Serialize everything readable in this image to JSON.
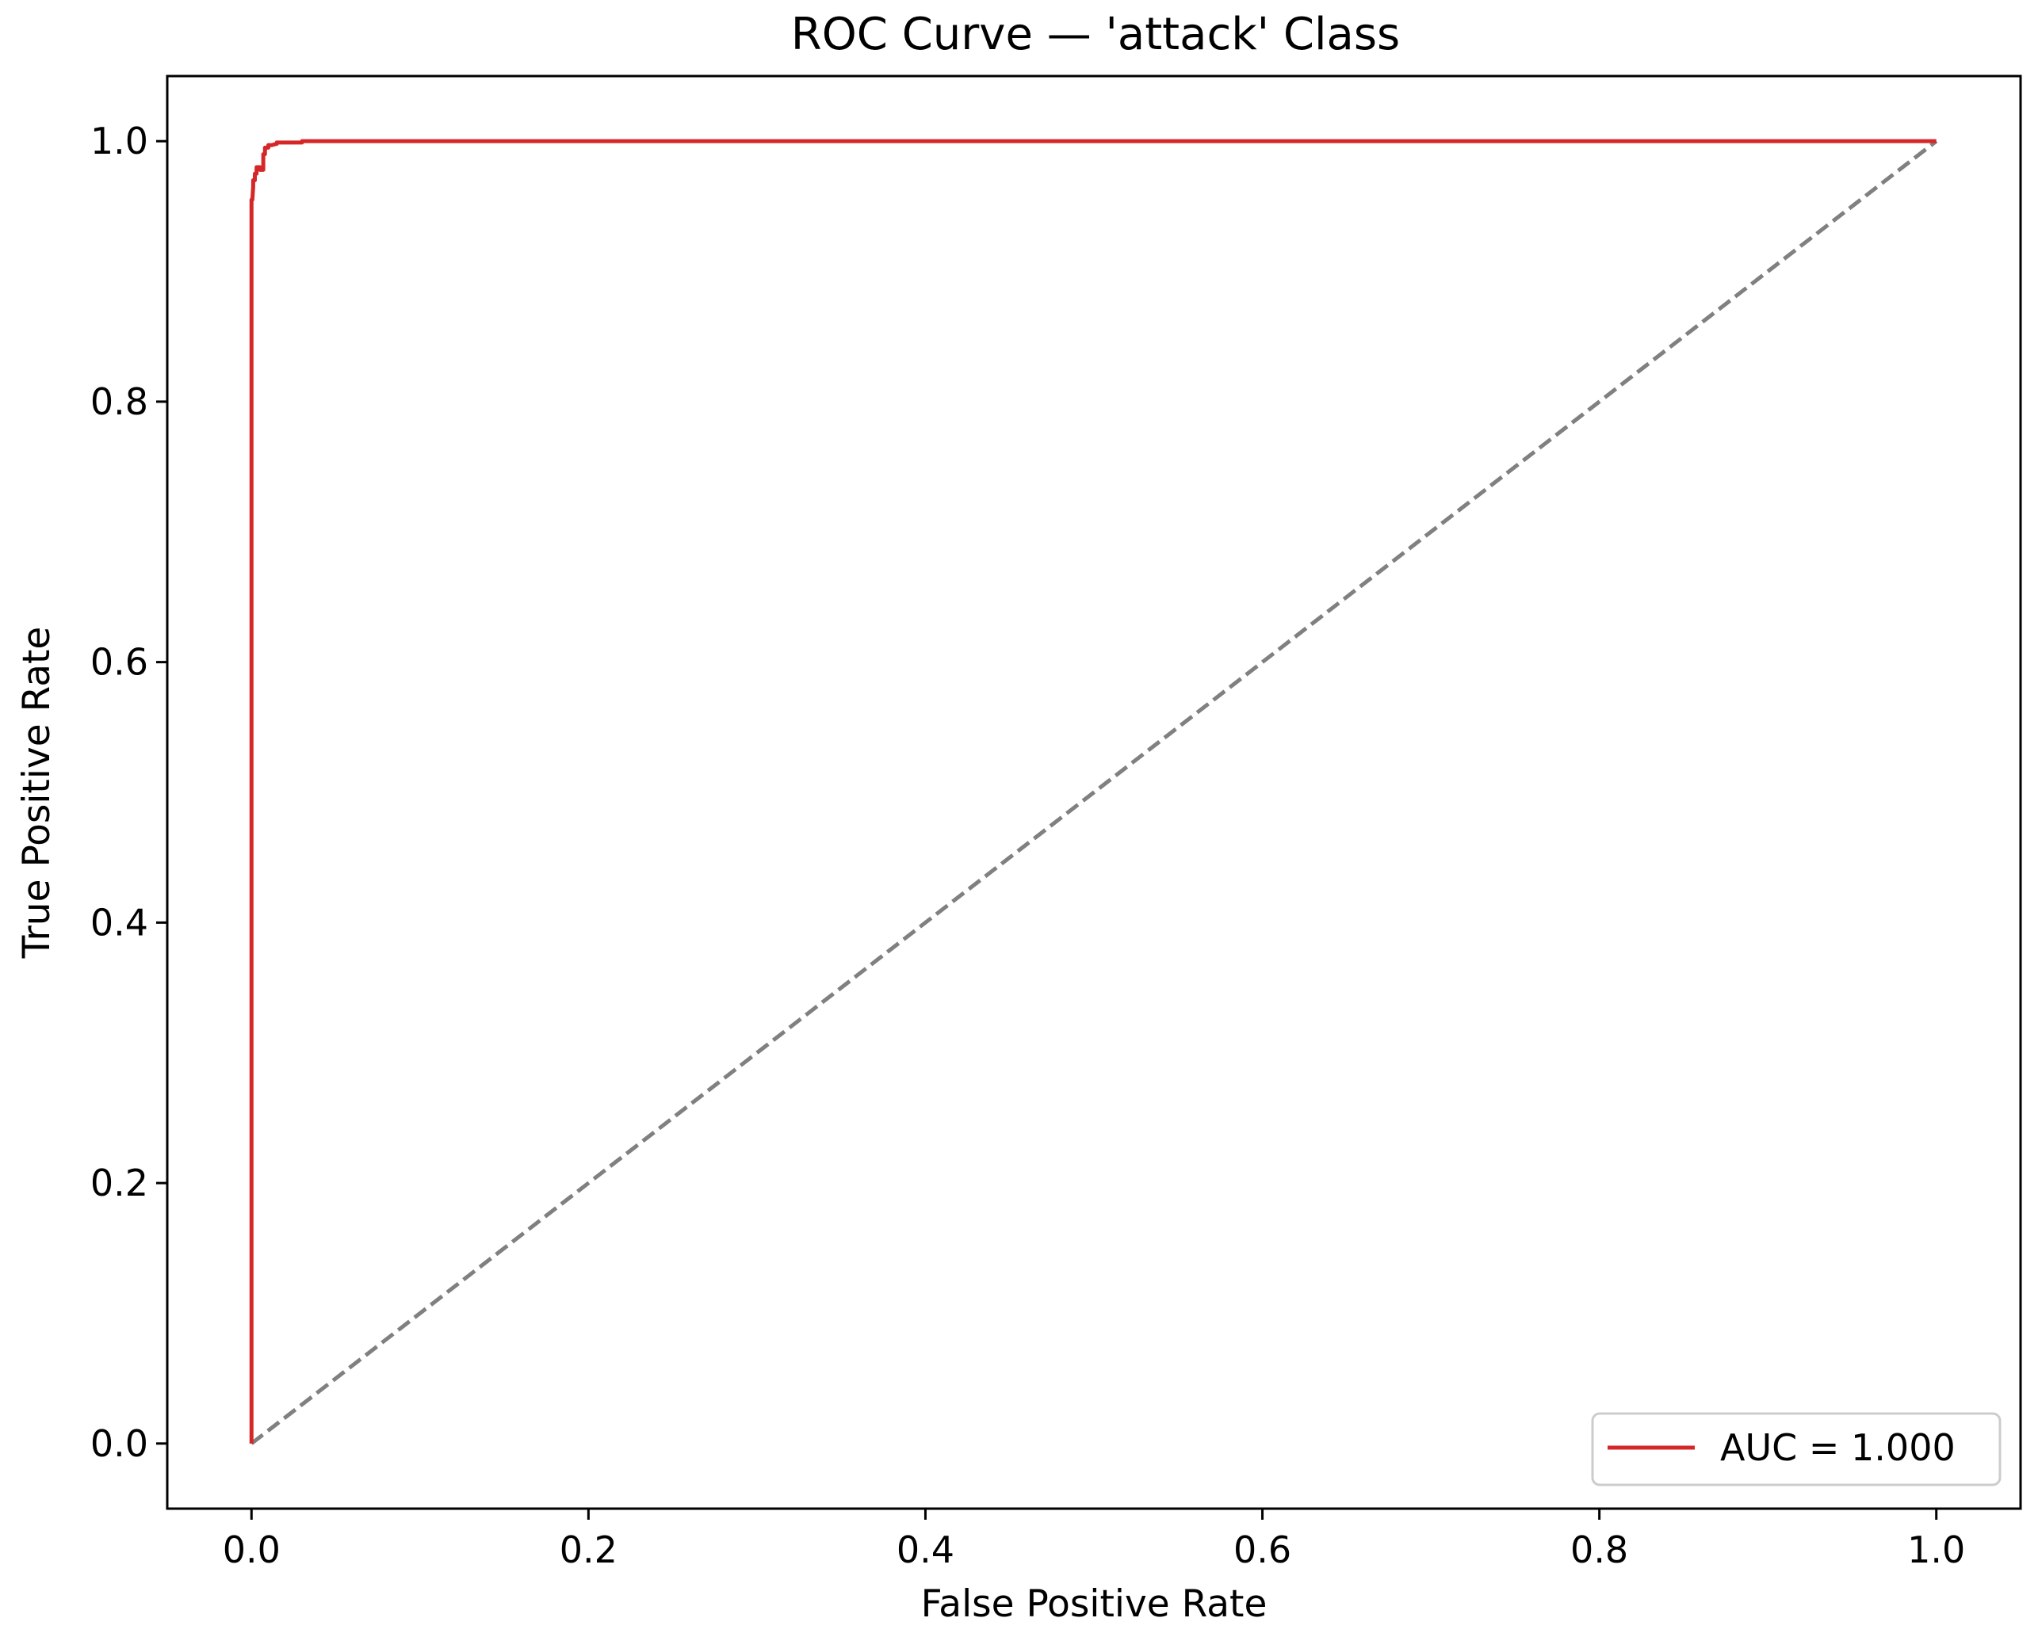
{
  "chart_data": {
    "type": "line",
    "title": "ROC Curve — 'attack' Class",
    "xlabel": "False Positive Rate",
    "ylabel": "True Positive Rate",
    "xlim": [
      -0.05,
      1.05
    ],
    "ylim": [
      -0.05,
      1.05
    ],
    "xticks": [
      "0.0",
      "0.2",
      "0.4",
      "0.6",
      "0.8",
      "1.0"
    ],
    "yticks": [
      "0.0",
      "0.2",
      "0.4",
      "0.6",
      "0.8",
      "1.0"
    ],
    "grid": false,
    "legend_position": "lower-right",
    "series": [
      {
        "name": "AUC = 1.000",
        "color": "#d62728",
        "style": "solid",
        "x": [
          0.0,
          0.0,
          0.0005,
          0.001,
          0.001,
          0.002,
          0.002,
          0.003,
          0.003,
          0.005,
          0.005,
          0.007,
          0.007,
          0.008,
          0.008,
          0.01,
          0.01,
          0.012,
          0.015,
          0.015,
          0.03,
          0.03,
          1.0
        ],
        "y": [
          0.0,
          0.955,
          0.955,
          0.965,
          0.97,
          0.97,
          0.975,
          0.975,
          0.98,
          0.98,
          0.978,
          0.978,
          0.99,
          0.99,
          0.995,
          0.995,
          0.997,
          0.997,
          0.998,
          0.999,
          0.999,
          1.0,
          1.0
        ]
      },
      {
        "color": "#808080",
        "style": "dashed",
        "x": [
          0.0,
          1.0
        ],
        "y": [
          0.0,
          1.0
        ]
      }
    ]
  }
}
